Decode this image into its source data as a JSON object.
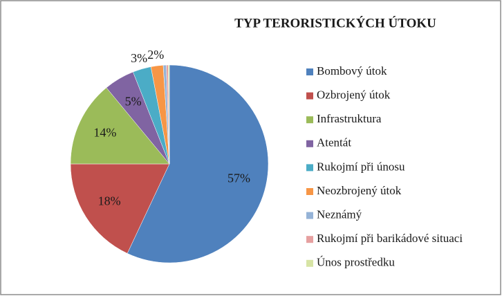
{
  "chart_data": {
    "type": "pie",
    "title": "TYP TERORISTICKÝCH ÚTOKU",
    "categories": [
      "Bombový útok",
      "Ozbrojený útok",
      "Infrastruktura",
      "Atentát",
      "Rukojmí při únosu",
      "Neozbrojený útok",
      "Neznámý",
      "Rukojmí při barikádové situaci",
      "Únos prostředku"
    ],
    "values": [
      57,
      18,
      14,
      5,
      3,
      2,
      0.5,
      0.3,
      0.2
    ],
    "value_labels": [
      "57%",
      "18%",
      "14%",
      "5%",
      "3%",
      "2%",
      null,
      null,
      null
    ],
    "colors": [
      "#4f81bd",
      "#c0504d",
      "#9bbb59",
      "#8064a2",
      "#4bacc6",
      "#f79646",
      "#95b3d7",
      "#e6a0a0",
      "#d7e4a5"
    ],
    "legend": "right"
  }
}
